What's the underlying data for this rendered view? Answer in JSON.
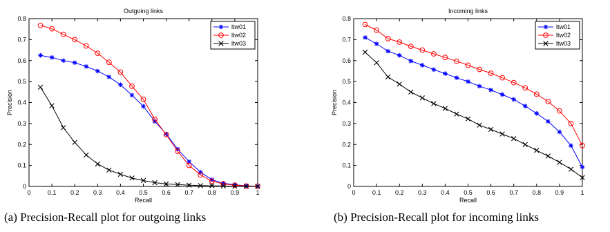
{
  "chart_data": [
    {
      "type": "line",
      "title": "Outgoing links",
      "xlabel": "Recall",
      "ylabel": "Precision",
      "xlim": [
        0,
        1
      ],
      "ylim": [
        0,
        0.8
      ],
      "xticks": [
        "0",
        "0.1",
        "0.2",
        "0.3",
        "0.4",
        "0.5",
        "0.6",
        "0.7",
        "0.8",
        "0.9",
        "1"
      ],
      "yticks": [
        "0",
        "0.1",
        "0.2",
        "0.3",
        "0.4",
        "0.5",
        "0.6",
        "0.7",
        "0.8"
      ],
      "legend_position": "top-right",
      "grid": false,
      "x": [
        0.05,
        0.1,
        0.15,
        0.2,
        0.25,
        0.3,
        0.35,
        0.4,
        0.45,
        0.5,
        0.55,
        0.6,
        0.65,
        0.7,
        0.75,
        0.8,
        0.85,
        0.9,
        0.95,
        1.0
      ],
      "series": [
        {
          "name": "ltw01",
          "color": "#0000ff",
          "marker": "asterisk",
          "values": [
            0.625,
            0.615,
            0.6,
            0.59,
            0.572,
            0.55,
            0.522,
            0.485,
            0.435,
            0.382,
            0.31,
            0.25,
            0.178,
            0.118,
            0.068,
            0.032,
            0.015,
            0.008,
            0.003,
            0.001
          ]
        },
        {
          "name": "ltw02",
          "color": "#ff0000",
          "marker": "circle",
          "values": [
            0.768,
            0.752,
            0.725,
            0.7,
            0.67,
            0.635,
            0.592,
            0.545,
            0.478,
            0.415,
            0.32,
            0.247,
            0.168,
            0.1,
            0.055,
            0.025,
            0.012,
            0.006,
            0.002,
            0.001
          ]
        },
        {
          "name": "ltw03",
          "color": "#000000",
          "marker": "x",
          "values": [
            0.473,
            0.385,
            0.28,
            0.21,
            0.15,
            0.107,
            0.078,
            0.058,
            0.04,
            0.028,
            0.018,
            0.012,
            0.009,
            0.006,
            0.004,
            0.003,
            0.002,
            0.001,
            0.0005,
            0.0002
          ]
        }
      ]
    },
    {
      "type": "line",
      "title": "Incoming links",
      "xlabel": "Recall",
      "ylabel": "Precision",
      "xlim": [
        0,
        1
      ],
      "ylim": [
        0,
        0.8
      ],
      "xticks": [
        "0",
        "0.1",
        "0.2",
        "0.3",
        "0.4",
        "0.5",
        "0.6",
        "0.7",
        "0.8",
        "0.9",
        "1"
      ],
      "yticks": [
        "0",
        "0.1",
        "0.2",
        "0.3",
        "0.4",
        "0.5",
        "0.6",
        "0.7",
        "0.8"
      ],
      "legend_position": "top-right",
      "grid": false,
      "x": [
        0.05,
        0.1,
        0.15,
        0.2,
        0.25,
        0.3,
        0.35,
        0.4,
        0.45,
        0.5,
        0.55,
        0.6,
        0.65,
        0.7,
        0.75,
        0.8,
        0.85,
        0.9,
        0.95,
        1.0
      ],
      "series": [
        {
          "name": "ltw01",
          "color": "#0000ff",
          "marker": "asterisk",
          "values": [
            0.71,
            0.68,
            0.645,
            0.625,
            0.598,
            0.578,
            0.557,
            0.538,
            0.518,
            0.5,
            0.478,
            0.46,
            0.438,
            0.415,
            0.383,
            0.348,
            0.31,
            0.26,
            0.195,
            0.092
          ]
        },
        {
          "name": "ltw02",
          "color": "#ff0000",
          "marker": "circle",
          "values": [
            0.772,
            0.745,
            0.705,
            0.688,
            0.668,
            0.65,
            0.632,
            0.615,
            0.597,
            0.578,
            0.558,
            0.54,
            0.518,
            0.495,
            0.47,
            0.44,
            0.405,
            0.36,
            0.3,
            0.195
          ]
        },
        {
          "name": "ltw03",
          "color": "#000000",
          "marker": "x",
          "values": [
            0.64,
            0.59,
            0.522,
            0.488,
            0.45,
            0.422,
            0.395,
            0.372,
            0.345,
            0.322,
            0.292,
            0.272,
            0.25,
            0.228,
            0.2,
            0.172,
            0.145,
            0.115,
            0.082,
            0.042
          ]
        }
      ]
    }
  ],
  "captions": {
    "a": "(a)  Precision-Recall plot for outgoing links",
    "b": "(b)  Precision-Recall plot for incoming links"
  }
}
